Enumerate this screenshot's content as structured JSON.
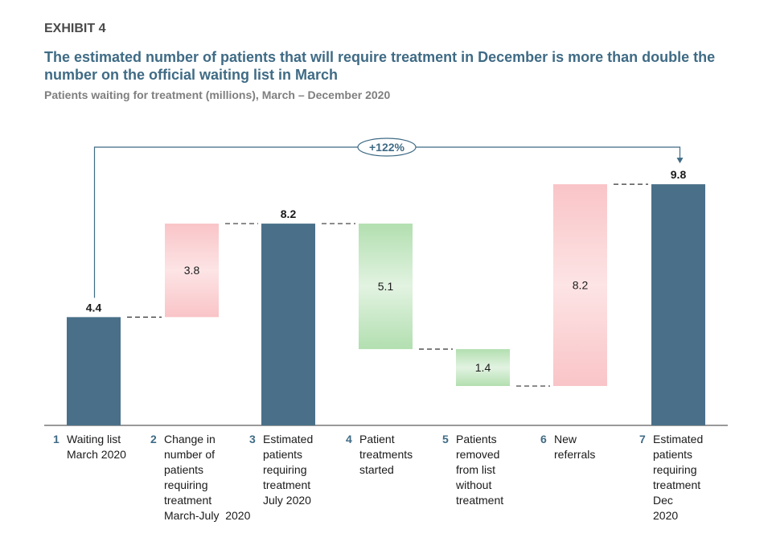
{
  "header": {
    "exhibit": "EXHIBIT 4",
    "title": "The estimated number of patients that will require treatment in December is more than double the number on the official waiting list in March",
    "subtitle": "Patients waiting for treatment (millions),  March – December 2020"
  },
  "colors": {
    "total": "#4a7089",
    "increase": "#f9c6c9",
    "decrease": "#b6e0b5",
    "accent": "#3f6b85"
  },
  "chart_data": {
    "type": "bar",
    "subtype": "waterfall",
    "unit": "millions",
    "ylim": [
      0,
      10
    ],
    "grid": false,
    "legend": "none",
    "bars": [
      {
        "index": "1",
        "label": "Waiting list March 2020",
        "label_lines": [
          "Waiting list",
          "March 2020"
        ],
        "kind": "total",
        "value": 4.4,
        "base": 0,
        "top": 4.4,
        "display": "4.4"
      },
      {
        "index": "2",
        "label": "Change in number of patients requiring treatment March-July 2020",
        "label_lines": [
          "Change in",
          "number of",
          "patients",
          "requiring",
          "treatment",
          "March-July  2020"
        ],
        "kind": "increase",
        "value": 3.8,
        "base": 4.4,
        "top": 8.2,
        "display": "3.8"
      },
      {
        "index": "3",
        "label": "Estimated patients requiring treatment July 2020",
        "label_lines": [
          "Estimated",
          "patients",
          "requiring",
          "treatment",
          "July 2020"
        ],
        "kind": "total",
        "value": 8.2,
        "base": 0,
        "top": 8.2,
        "display": "8.2"
      },
      {
        "index": "4",
        "label": "Patient treatments started",
        "label_lines": [
          "Patient",
          "treatments",
          "started"
        ],
        "kind": "decrease",
        "value": 5.1,
        "base": 3.1,
        "top": 8.2,
        "display": "5.1"
      },
      {
        "index": "5",
        "label": "Patients removed from list without treatment",
        "label_lines": [
          "Patients",
          "removed",
          "from list",
          "without",
          "treatment"
        ],
        "kind": "decrease",
        "value": 1.4,
        "base": 1.6,
        "top": 3.1,
        "display": "1.4"
      },
      {
        "index": "6",
        "label": "New referrals",
        "label_lines": [
          "New",
          "referrals"
        ],
        "kind": "increase",
        "value": 8.2,
        "base": 1.6,
        "top": 9.8,
        "display": "8.2"
      },
      {
        "index": "7",
        "label": "Estimated patients requiring treatment Dec 2020",
        "label_lines": [
          "Estimated",
          "patients",
          "requiring",
          "treatment",
          "Dec",
          "2020"
        ],
        "kind": "total",
        "value": 9.8,
        "base": 0,
        "top": 9.8,
        "display": "9.8"
      }
    ],
    "annotation": {
      "text": "+122%",
      "from_index": 0,
      "to_index": 6
    }
  }
}
